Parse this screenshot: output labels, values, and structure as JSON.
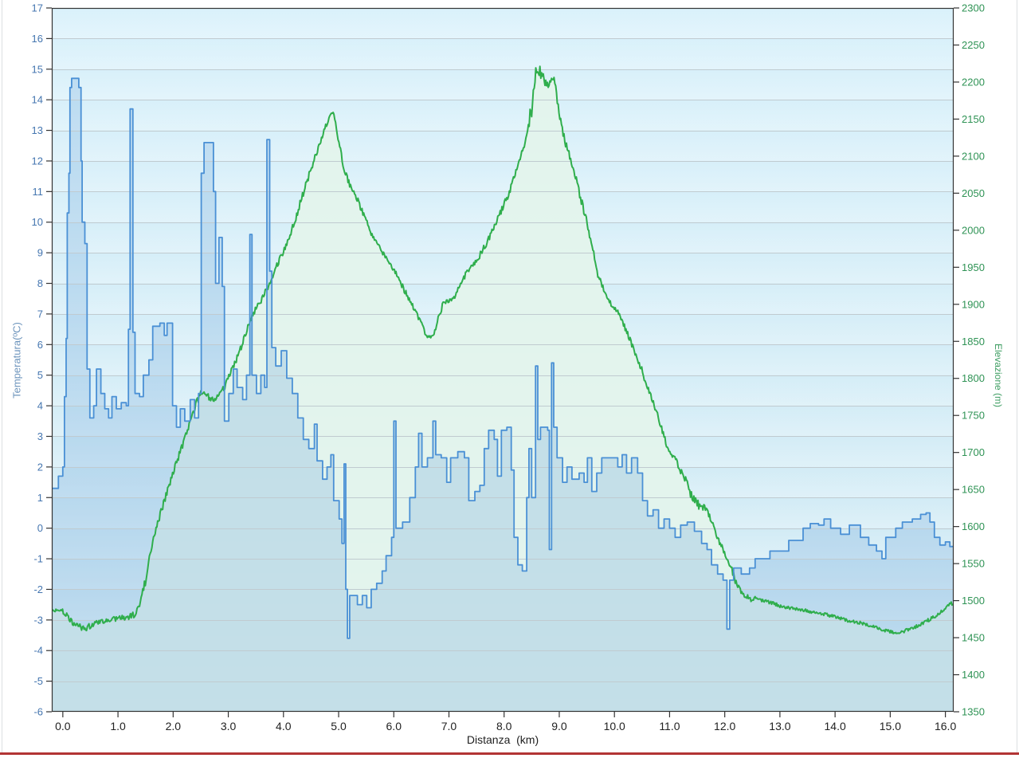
{
  "page": {
    "background": "#ffffff",
    "divider_color": "#b23434",
    "side_border_color": "#dcdfe2"
  },
  "chart_data": {
    "type": "line",
    "title": "",
    "xlabel": "Distanza  (km)",
    "x_range": [
      -0.2,
      16.15
    ],
    "x_tick_values": [
      0,
      1,
      2,
      3,
      4,
      5,
      6,
      7,
      8,
      9,
      10,
      11,
      12,
      13,
      14,
      15,
      16
    ],
    "x_ticks": [
      "0.0",
      "1.0",
      "2.0",
      "3.0",
      "4.0",
      "5.0",
      "6.0",
      "7.0",
      "8.0",
      "9.0",
      "10.0",
      "11.0",
      "12.0",
      "13.0",
      "14.0",
      "15.0",
      "16.0"
    ],
    "grid": true,
    "legend": "none",
    "background": {
      "plot_top": "#d9f1fb",
      "plot_bottom": "#cfe9f3",
      "grid": "#c0cbd0",
      "border": "#333333",
      "tick": "#333333"
    },
    "left_axis": {
      "title": "Temperatura(ºC)",
      "range": [
        -6,
        17
      ],
      "ticks": [
        17,
        16,
        15,
        14,
        13,
        12,
        11,
        10,
        9,
        8,
        7,
        6,
        5,
        4,
        3,
        2,
        1,
        0,
        -1,
        -2,
        -3,
        -4,
        -5,
        -6
      ],
      "tick_color": "#4576b0",
      "title_color": "#6e95bd"
    },
    "right_axis": {
      "title": "Elevazione (m)",
      "range": [
        1350,
        2300
      ],
      "ticks": [
        2300,
        2250,
        2200,
        2150,
        2100,
        2050,
        2000,
        1950,
        1900,
        1850,
        1800,
        1750,
        1700,
        1650,
        1600,
        1550,
        1500,
        1450,
        1400,
        1350
      ],
      "tick_color": "#2f9355",
      "title_color": "#3f9e63"
    },
    "x_tick_color": "#222222",
    "series": [
      {
        "name": "Elevazione",
        "axis": "right",
        "style": "noisy-line",
        "color": "#2fae4c",
        "fill": "#e3f4ec",
        "fill_opacity": 0.93,
        "x_start": 0.0,
        "x_step": 0.1,
        "values": [
          1487,
          1478,
          1470,
          1465,
          1462,
          1466,
          1469,
          1471,
          1473,
          1474,
          1476,
          1477,
          1478,
          1482,
          1492,
          1528,
          1568,
          1600,
          1625,
          1648,
          1672,
          1695,
          1716,
          1738,
          1763,
          1782,
          1777,
          1771,
          1776,
          1783,
          1800,
          1817,
          1835,
          1858,
          1878,
          1895,
          1905,
          1921,
          1938,
          1955,
          1972,
          1990,
          2010,
          2035,
          2060,
          2082,
          2104,
          2125,
          2148,
          2162,
          2120,
          2080,
          2062,
          2050,
          2030,
          2012,
          1995,
          1982,
          1970,
          1955,
          1948,
          1932,
          1918,
          1905,
          1888,
          1873,
          1857,
          1856,
          1880,
          1902,
          1905,
          1910,
          1925,
          1940,
          1950,
          1958,
          1972,
          1985,
          2002,
          2018,
          2035,
          2052,
          2075,
          2098,
          2125,
          2165,
          2222,
          2205,
          2195,
          2208,
          2158,
          2120,
          2098,
          2070,
          2040,
          2012,
          1975,
          1942,
          1920,
          1905,
          1895,
          1885,
          1868,
          1848,
          1830,
          1810,
          1788,
          1768,
          1745,
          1722,
          1700,
          1692,
          1675,
          1662,
          1640,
          1632,
          1628,
          1618,
          1600,
          1580,
          1565,
          1548,
          1525,
          1512,
          1505,
          1502,
          1501,
          1500,
          1498,
          1496,
          1493,
          1491,
          1490,
          1489,
          1488,
          1486,
          1484,
          1483,
          1482,
          1480,
          1478,
          1476,
          1474,
          1472,
          1471,
          1469,
          1467,
          1465,
          1462,
          1460,
          1458,
          1457,
          1458,
          1460,
          1463,
          1466,
          1470,
          1474,
          1478,
          1483,
          1489,
          1496
        ]
      },
      {
        "name": "Temperatura",
        "axis": "left",
        "style": "step",
        "color": "#4a90d5",
        "fill": "rgba(115,170,220,0.28)",
        "steps": [
          [
            -0.2,
            1.3
          ],
          [
            -0.08,
            1.7
          ],
          [
            0.0,
            2.0
          ],
          [
            0.03,
            4.3
          ],
          [
            0.06,
            6.2
          ],
          [
            0.08,
            10.3
          ],
          [
            0.11,
            11.6
          ],
          [
            0.13,
            14.4
          ],
          [
            0.16,
            14.7
          ],
          [
            0.29,
            14.4
          ],
          [
            0.33,
            12.0
          ],
          [
            0.35,
            10.0
          ],
          [
            0.4,
            9.3
          ],
          [
            0.44,
            5.2
          ],
          [
            0.49,
            3.6
          ],
          [
            0.56,
            4.0
          ],
          [
            0.61,
            5.2
          ],
          [
            0.69,
            4.4
          ],
          [
            0.76,
            3.9
          ],
          [
            0.83,
            3.6
          ],
          [
            0.89,
            4.3
          ],
          [
            0.97,
            3.9
          ],
          [
            1.06,
            4.1
          ],
          [
            1.15,
            4.0
          ],
          [
            1.19,
            6.5
          ],
          [
            1.22,
            13.7
          ],
          [
            1.27,
            6.4
          ],
          [
            1.31,
            4.4
          ],
          [
            1.39,
            4.3
          ],
          [
            1.46,
            5.0
          ],
          [
            1.56,
            5.5
          ],
          [
            1.63,
            6.6
          ],
          [
            1.76,
            6.7
          ],
          [
            1.84,
            6.3
          ],
          [
            1.89,
            6.7
          ],
          [
            1.99,
            4.0
          ],
          [
            2.06,
            3.3
          ],
          [
            2.13,
            3.9
          ],
          [
            2.21,
            3.5
          ],
          [
            2.31,
            4.2
          ],
          [
            2.39,
            3.6
          ],
          [
            2.46,
            4.4
          ],
          [
            2.51,
            11.6
          ],
          [
            2.56,
            12.6
          ],
          [
            2.73,
            11.0
          ],
          [
            2.77,
            8.0
          ],
          [
            2.83,
            9.5
          ],
          [
            2.89,
            7.9
          ],
          [
            2.93,
            3.5
          ],
          [
            3.01,
            4.4
          ],
          [
            3.09,
            5.2
          ],
          [
            3.16,
            4.6
          ],
          [
            3.26,
            4.2
          ],
          [
            3.33,
            5.0
          ],
          [
            3.39,
            9.6
          ],
          [
            3.43,
            5.0
          ],
          [
            3.51,
            4.4
          ],
          [
            3.59,
            5.0
          ],
          [
            3.66,
            4.6
          ],
          [
            3.7,
            12.7
          ],
          [
            3.75,
            8.4
          ],
          [
            3.79,
            5.9
          ],
          [
            3.86,
            5.3
          ],
          [
            3.96,
            5.8
          ],
          [
            4.06,
            4.9
          ],
          [
            4.16,
            4.4
          ],
          [
            4.26,
            3.6
          ],
          [
            4.36,
            2.9
          ],
          [
            4.46,
            2.6
          ],
          [
            4.56,
            3.4
          ],
          [
            4.61,
            2.2
          ],
          [
            4.71,
            1.6
          ],
          [
            4.79,
            2.0
          ],
          [
            4.86,
            2.4
          ],
          [
            4.91,
            0.9
          ],
          [
            5.01,
            0.3
          ],
          [
            5.06,
            -0.5
          ],
          [
            5.1,
            2.1
          ],
          [
            5.13,
            -2.0
          ],
          [
            5.16,
            -3.6
          ],
          [
            5.2,
            -2.2
          ],
          [
            5.34,
            -2.5
          ],
          [
            5.43,
            -2.2
          ],
          [
            5.51,
            -2.6
          ],
          [
            5.59,
            -2.0
          ],
          [
            5.69,
            -1.8
          ],
          [
            5.79,
            -1.4
          ],
          [
            5.86,
            -0.9
          ],
          [
            5.96,
            -0.3
          ],
          [
            6.0,
            3.5
          ],
          [
            6.04,
            0.0
          ],
          [
            6.16,
            0.2
          ],
          [
            6.29,
            1.0
          ],
          [
            6.39,
            2.0
          ],
          [
            6.45,
            3.1
          ],
          [
            6.51,
            2.0
          ],
          [
            6.61,
            2.3
          ],
          [
            6.71,
            3.5
          ],
          [
            6.76,
            2.4
          ],
          [
            6.86,
            2.3
          ],
          [
            6.96,
            1.5
          ],
          [
            7.03,
            2.3
          ],
          [
            7.16,
            2.5
          ],
          [
            7.28,
            2.3
          ],
          [
            7.36,
            0.9
          ],
          [
            7.47,
            1.2
          ],
          [
            7.56,
            1.4
          ],
          [
            7.64,
            2.6
          ],
          [
            7.72,
            3.2
          ],
          [
            7.82,
            2.9
          ],
          [
            7.88,
            1.7
          ],
          [
            7.95,
            3.2
          ],
          [
            8.05,
            3.3
          ],
          [
            8.13,
            1.9
          ],
          [
            8.18,
            -0.3
          ],
          [
            8.25,
            -1.2
          ],
          [
            8.33,
            -1.4
          ],
          [
            8.41,
            1.0
          ],
          [
            8.45,
            2.6
          ],
          [
            8.5,
            1.0
          ],
          [
            8.57,
            5.3
          ],
          [
            8.61,
            2.9
          ],
          [
            8.66,
            3.3
          ],
          [
            8.79,
            3.2
          ],
          [
            8.82,
            -0.7
          ],
          [
            8.86,
            5.4
          ],
          [
            8.9,
            3.3
          ],
          [
            8.96,
            2.3
          ],
          [
            9.06,
            1.5
          ],
          [
            9.14,
            2.0
          ],
          [
            9.23,
            1.6
          ],
          [
            9.36,
            1.8
          ],
          [
            9.45,
            1.5
          ],
          [
            9.51,
            2.3
          ],
          [
            9.59,
            1.2
          ],
          [
            9.68,
            1.8
          ],
          [
            9.77,
            2.3
          ],
          [
            9.92,
            2.3
          ],
          [
            10.06,
            2.0
          ],
          [
            10.14,
            2.4
          ],
          [
            10.22,
            1.8
          ],
          [
            10.31,
            2.3
          ],
          [
            10.42,
            1.8
          ],
          [
            10.51,
            0.9
          ],
          [
            10.6,
            0.4
          ],
          [
            10.7,
            0.6
          ],
          [
            10.8,
            0.0
          ],
          [
            10.9,
            0.3
          ],
          [
            11.0,
            0.0
          ],
          [
            11.1,
            -0.3
          ],
          [
            11.2,
            0.1
          ],
          [
            11.32,
            0.2
          ],
          [
            11.45,
            -0.1
          ],
          [
            11.58,
            -0.5
          ],
          [
            11.68,
            -0.7
          ],
          [
            11.76,
            -1.2
          ],
          [
            11.87,
            -1.5
          ],
          [
            11.97,
            -1.7
          ],
          [
            12.04,
            -3.3
          ],
          [
            12.09,
            -1.7
          ],
          [
            12.16,
            -1.3
          ],
          [
            12.3,
            -1.5
          ],
          [
            12.45,
            -1.3
          ],
          [
            12.55,
            -1.0
          ],
          [
            12.7,
            -1.0
          ],
          [
            12.82,
            -0.75
          ],
          [
            13.0,
            -0.75
          ],
          [
            13.16,
            -0.4
          ],
          [
            13.3,
            -0.4
          ],
          [
            13.42,
            0.0
          ],
          [
            13.55,
            0.15
          ],
          [
            13.7,
            0.1
          ],
          [
            13.8,
            0.3
          ],
          [
            13.92,
            0.0
          ],
          [
            14.1,
            -0.2
          ],
          [
            14.26,
            0.1
          ],
          [
            14.46,
            -0.3
          ],
          [
            14.61,
            -0.55
          ],
          [
            14.75,
            -0.75
          ],
          [
            14.85,
            -1.0
          ],
          [
            14.92,
            -0.3
          ],
          [
            15.1,
            0.0
          ],
          [
            15.22,
            0.2
          ],
          [
            15.4,
            0.3
          ],
          [
            15.55,
            0.45
          ],
          [
            15.65,
            0.5
          ],
          [
            15.72,
            0.2
          ],
          [
            15.8,
            -0.3
          ],
          [
            15.9,
            -0.55
          ],
          [
            16.0,
            -0.45
          ],
          [
            16.08,
            -0.6
          ]
        ]
      }
    ]
  }
}
